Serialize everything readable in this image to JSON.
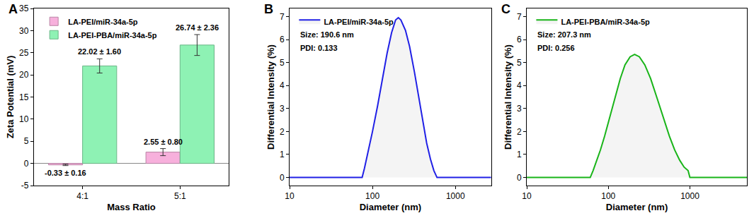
{
  "chart_data": [
    {
      "type": "bar",
      "title": "A",
      "x_label": "Mass Ratio",
      "y_label": "Zeta Potential (mV)",
      "categories": [
        "4:1",
        "5:1"
      ],
      "series": [
        {
          "name": "LA-PEI/miR-34a-5p",
          "color": "#f7b0dc",
          "values": [
            -0.33,
            2.55
          ],
          "errors": [
            0.16,
            0.8
          ],
          "value_labels": [
            "-0.33 ± 0.16",
            "2.55 ± 0.80"
          ]
        },
        {
          "name": "LA-PEI-PBA/miR-34a-5p",
          "color": "#8ef2b4",
          "values": [
            22.02,
            26.74
          ],
          "errors": [
            1.6,
            2.36
          ],
          "value_labels": [
            "22.02 ± 1.60",
            "26.74 ± 2.36"
          ]
        }
      ],
      "ylim": [
        -5,
        35
      ],
      "yticks": [
        -5,
        0,
        5,
        10,
        15,
        20,
        25,
        30,
        35
      ],
      "legend": "upper left",
      "data_labels": true,
      "grid": false
    },
    {
      "type": "line",
      "title": "B",
      "x_label": "Diameter (nm)",
      "y_label": "Differential Intensity (%)",
      "log": "x",
      "x": [
        10,
        70,
        75,
        80,
        90,
        100,
        115,
        130,
        150,
        170,
        190,
        205,
        220,
        250,
        280,
        320,
        360,
        400,
        450,
        500,
        550,
        600,
        1000,
        2700
      ],
      "series": [
        {
          "name": "LA-PEI/miR-34a-5p",
          "color": "#2020e6",
          "values": [
            0,
            0,
            0,
            0.4,
            1.2,
            2.0,
            3.1,
            4.2,
            5.4,
            6.3,
            6.85,
            6.95,
            6.85,
            6.4,
            5.7,
            4.6,
            3.5,
            2.5,
            1.5,
            0.8,
            0.3,
            0,
            0,
            0
          ]
        }
      ],
      "annotations": [
        "Size: 190.6 nm",
        "PDI: 0.133"
      ],
      "xlim": [
        10,
        2700
      ],
      "xticks": [
        10,
        100,
        1000
      ],
      "ylim": [
        -0.35,
        7.35
      ],
      "yticks": [
        0,
        1,
        2,
        3,
        4,
        5,
        6,
        7
      ],
      "legend": "upper left",
      "grid": false
    },
    {
      "type": "line",
      "title": "C",
      "x_label": "Diameter (nm)",
      "y_label": "Differential Intensity (%)",
      "log": "x",
      "x": [
        10,
        55,
        60,
        65,
        70,
        80,
        90,
        100,
        120,
        140,
        160,
        185,
        210,
        240,
        280,
        330,
        400,
        480,
        560,
        650,
        750,
        850,
        950,
        1000,
        2000,
        5000
      ],
      "series": [
        {
          "name": "LA-PEI-PBA/miR-34a-5p",
          "color": "#18b418",
          "values": [
            0,
            0,
            0,
            0.3,
            0.6,
            1.2,
            1.8,
            2.4,
            3.4,
            4.3,
            4.9,
            5.25,
            5.35,
            5.25,
            4.9,
            4.3,
            3.4,
            2.5,
            1.8,
            1.2,
            0.75,
            0.45,
            0.3,
            0,
            0,
            0
          ]
        }
      ],
      "annotations": [
        "Size: 207.3 nm",
        "PDI: 0.256"
      ],
      "xlim": [
        10,
        5000
      ],
      "xticks": [
        10,
        100,
        1000
      ],
      "ylim": [
        -0.35,
        7.35
      ],
      "yticks": [
        0,
        1,
        2,
        3,
        4,
        5,
        6,
        7
      ],
      "legend": "upper left",
      "grid": false
    }
  ]
}
